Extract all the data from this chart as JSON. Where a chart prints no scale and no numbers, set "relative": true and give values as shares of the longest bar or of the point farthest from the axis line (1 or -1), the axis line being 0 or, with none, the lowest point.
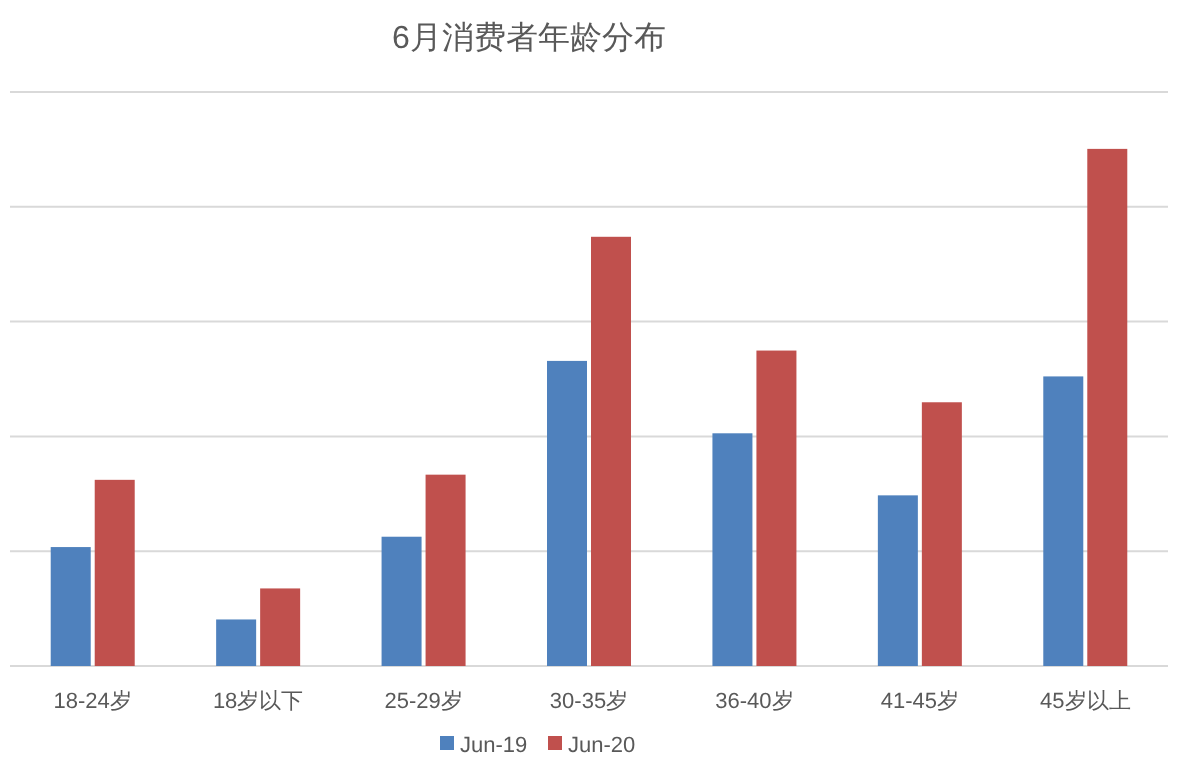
{
  "chart_data": {
    "type": "bar",
    "title": "6月消费者年龄分布",
    "relative": true,
    "grid": "y",
    "legend": "bottom",
    "categories": [
      "18-24岁",
      "18岁以下",
      "25-29岁",
      "30-35岁",
      "36-40岁",
      "41-45岁",
      "45岁以上"
    ],
    "series": [
      {
        "name": "Jun-19",
        "color": "#4f81bd",
        "values": [
          0.23,
          0.09,
          0.25,
          0.59,
          0.45,
          0.33,
          0.56
        ]
      },
      {
        "name": "Jun-20",
        "color": "#c0504d",
        "values": [
          0.36,
          0.15,
          0.37,
          0.83,
          0.61,
          0.51,
          1
        ]
      }
    ]
  }
}
